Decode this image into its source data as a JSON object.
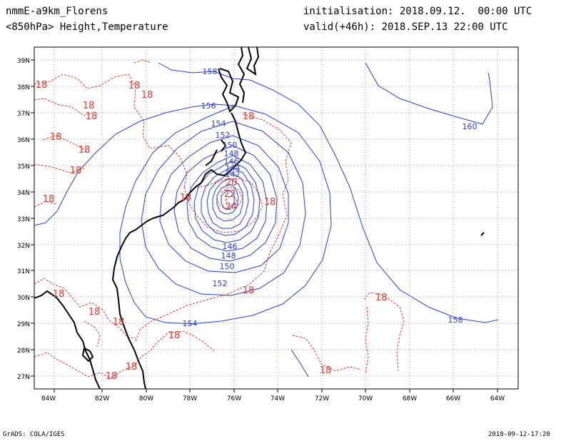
{
  "header": {
    "model": "nmmE-a9km_Florens",
    "field": "<850hPa> Height,Temperature",
    "init": "initialisation: 2018.09.12.  00:00 UTC",
    "valid": "valid(+46h): 2018.SEP.13 22:00 UTC"
  },
  "footer": {
    "credit": "GrADS: COLA/IGES",
    "timestamp": "2018-09-12-17:20"
  },
  "axes": {
    "lon_labels": [
      "84W",
      "82W",
      "80W",
      "78W",
      "76W",
      "74W",
      "72W",
      "70W",
      "68W",
      "66W",
      "64W"
    ],
    "lat_labels": [
      "27N",
      "28N",
      "29N",
      "30N",
      "31N",
      "32N",
      "33N",
      "34N",
      "35N",
      "36N",
      "37N",
      "38N",
      "39N"
    ]
  },
  "height_labels": [
    "158",
    "156",
    "154",
    "152",
    "150",
    "148",
    "146",
    "144",
    "142",
    "146",
    "148",
    "150",
    "152",
    "154",
    "158",
    "160"
  ],
  "temp_labels": [
    "18",
    "18",
    "18",
    "18",
    "18",
    "18",
    "18",
    "18",
    "18",
    "18",
    "18",
    "18",
    "18",
    "18",
    "18",
    "18",
    "18",
    "20",
    "22",
    "24",
    "18"
  ],
  "colors": {
    "height": "#2a3fd0",
    "temperature": "#e23a2e",
    "coast": "#000000",
    "grid": "#9a9a9a"
  }
}
